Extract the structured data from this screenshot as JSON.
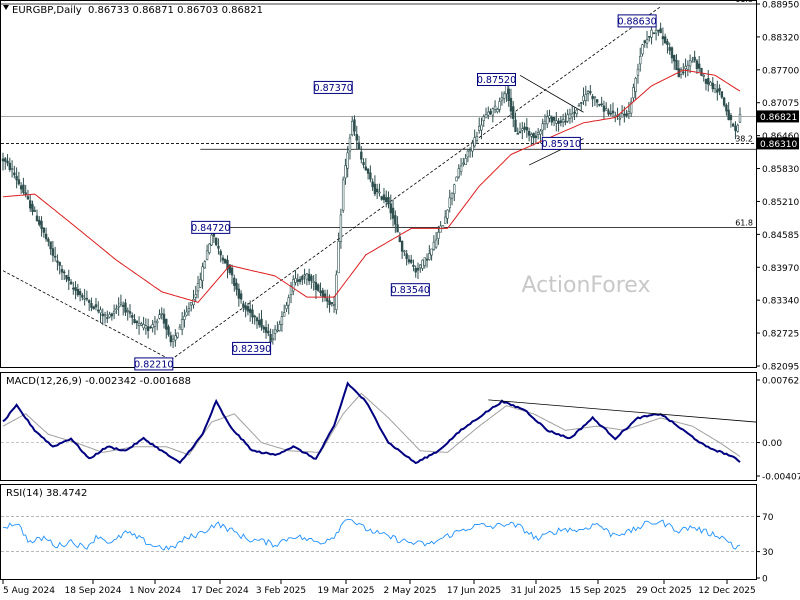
{
  "header": {
    "symbol_line": "EURGBP,Daily",
    "ohlc": "0.86733 0.86871 0.86703 0.86821"
  },
  "watermark": "ActionForex",
  "colors": {
    "candle": "#2f4f4f",
    "ma": "#dc1e1e",
    "macd_main": "#000080",
    "macd_signal": "#a0a0a0",
    "rsi": "#1e90ff",
    "trendline": "#000000",
    "price_label_bg": "#000000",
    "price_label_text": "#ffffff"
  },
  "chart_data": [
    {
      "type": "candlestick",
      "panel": "price",
      "ylim": [
        0.82095,
        0.8895
      ],
      "y_ticks": [
        "0.88950",
        "0.88320",
        "0.87700",
        "0.87075",
        "0.86460",
        "0.85830",
        "0.85210",
        "0.84585",
        "0.83970",
        "0.83340",
        "0.82725",
        "0.82095"
      ],
      "x_ticks": [
        "5 Aug 2024",
        "18 Sep 2024",
        "1 Nov 2024",
        "17 Dec 2024",
        "3 Feb 2025",
        "19 Mar 2025",
        "2 May 2025",
        "17 Jun 2025",
        "31 Jul 2025",
        "15 Sep 2025",
        "29 Oct 2025",
        "12 Dec 2025"
      ],
      "anchors": [
        {
          "x": 0,
          "v": 0.86
        },
        {
          "x": 4,
          "v": 0.858
        },
        {
          "x": 10,
          "v": 0.853
        },
        {
          "x": 16,
          "v": 0.848
        },
        {
          "x": 22,
          "v": 0.842
        },
        {
          "x": 30,
          "v": 0.836
        },
        {
          "x": 38,
          "v": 0.833
        },
        {
          "x": 46,
          "v": 0.83
        },
        {
          "x": 52,
          "v": 0.833
        },
        {
          "x": 58,
          "v": 0.829
        },
        {
          "x": 64,
          "v": 0.828
        },
        {
          "x": 70,
          "v": 0.831
        },
        {
          "x": 74,
          "v": 0.825
        },
        {
          "x": 80,
          "v": 0.83
        },
        {
          "x": 86,
          "v": 0.836
        },
        {
          "x": 92,
          "v": 0.846
        },
        {
          "x": 96,
          "v": 0.842
        },
        {
          "x": 100,
          "v": 0.839
        },
        {
          "x": 106,
          "v": 0.832
        },
        {
          "x": 112,
          "v": 0.83
        },
        {
          "x": 118,
          "v": 0.826
        },
        {
          "x": 122,
          "v": 0.829
        },
        {
          "x": 128,
          "v": 0.837
        },
        {
          "x": 134,
          "v": 0.838
        },
        {
          "x": 140,
          "v": 0.835
        },
        {
          "x": 146,
          "v": 0.832
        },
        {
          "x": 150,
          "v": 0.856
        },
        {
          "x": 154,
          "v": 0.867
        },
        {
          "x": 158,
          "v": 0.86
        },
        {
          "x": 164,
          "v": 0.854
        },
        {
          "x": 170,
          "v": 0.852
        },
        {
          "x": 176,
          "v": 0.843
        },
        {
          "x": 182,
          "v": 0.839
        },
        {
          "x": 188,
          "v": 0.842
        },
        {
          "x": 194,
          "v": 0.848
        },
        {
          "x": 200,
          "v": 0.857
        },
        {
          "x": 206,
          "v": 0.862
        },
        {
          "x": 212,
          "v": 0.868
        },
        {
          "x": 218,
          "v": 0.87
        },
        {
          "x": 222,
          "v": 0.874
        },
        {
          "x": 226,
          "v": 0.865
        },
        {
          "x": 230,
          "v": 0.866
        },
        {
          "x": 234,
          "v": 0.864
        },
        {
          "x": 240,
          "v": 0.868
        },
        {
          "x": 246,
          "v": 0.867
        },
        {
          "x": 252,
          "v": 0.869
        },
        {
          "x": 258,
          "v": 0.873
        },
        {
          "x": 264,
          "v": 0.87
        },
        {
          "x": 270,
          "v": 0.868
        },
        {
          "x": 276,
          "v": 0.869
        },
        {
          "x": 282,
          "v": 0.882
        },
        {
          "x": 288,
          "v": 0.885
        },
        {
          "x": 294,
          "v": 0.881
        },
        {
          "x": 298,
          "v": 0.876
        },
        {
          "x": 304,
          "v": 0.879
        },
        {
          "x": 310,
          "v": 0.875
        },
        {
          "x": 316,
          "v": 0.873
        },
        {
          "x": 320,
          "v": 0.868
        },
        {
          "x": 323,
          "v": 0.865
        },
        {
          "x": 325,
          "v": 0.8682
        }
      ],
      "moving_average_anchors": [
        {
          "x": 0,
          "v": 0.853
        },
        {
          "x": 14,
          "v": 0.8535
        },
        {
          "x": 30,
          "v": 0.848
        },
        {
          "x": 50,
          "v": 0.841
        },
        {
          "x": 70,
          "v": 0.835
        },
        {
          "x": 86,
          "v": 0.833
        },
        {
          "x": 100,
          "v": 0.84
        },
        {
          "x": 120,
          "v": 0.838
        },
        {
          "x": 134,
          "v": 0.834
        },
        {
          "x": 146,
          "v": 0.834
        },
        {
          "x": 160,
          "v": 0.842
        },
        {
          "x": 180,
          "v": 0.847
        },
        {
          "x": 196,
          "v": 0.847
        },
        {
          "x": 210,
          "v": 0.855
        },
        {
          "x": 224,
          "v": 0.861
        },
        {
          "x": 240,
          "v": 0.864
        },
        {
          "x": 256,
          "v": 0.867
        },
        {
          "x": 270,
          "v": 0.868
        },
        {
          "x": 286,
          "v": 0.874
        },
        {
          "x": 300,
          "v": 0.877
        },
        {
          "x": 314,
          "v": 0.876
        },
        {
          "x": 325,
          "v": 0.873
        }
      ],
      "horizontal_levels": [
        {
          "value": 0.8895,
          "label": "61.8",
          "style": "solid"
        },
        {
          "value": 0.86821,
          "label": "",
          "style": "solid-gray"
        },
        {
          "value": 0.8631,
          "label": "38.2",
          "style": "dashed"
        },
        {
          "value": 0.862,
          "label": "",
          "style": "solid",
          "from_x": 87
        },
        {
          "value": 0.8472,
          "label": "61.8",
          "style": "solid",
          "from_x": 100
        }
      ],
      "annotations": [
        {
          "text": "0.82210",
          "x": 74,
          "v": 0.8221
        },
        {
          "text": "0.84720",
          "x": 100,
          "v": 0.8472
        },
        {
          "text": "0.82390",
          "x": 118,
          "v": 0.8239
        },
        {
          "text": "0.87370",
          "x": 154,
          "v": 0.8737
        },
        {
          "text": "0.83540",
          "x": 188,
          "v": 0.8354
        },
        {
          "text": "0.87520",
          "x": 226,
          "v": 0.8752
        },
        {
          "text": "0.85910",
          "x": 244,
          "v": 0.8631
        },
        {
          "text": "0.88630",
          "x": 288,
          "v": 0.8863
        }
      ],
      "trendlines": [
        {
          "x1": 0,
          "v1": 0.839,
          "x2": 74,
          "v2": 0.8221,
          "style": "dashed"
        },
        {
          "x1": 74,
          "v1": 0.8221,
          "x2": 290,
          "v2": 0.889,
          "style": "dashed"
        },
        {
          "x1": 228,
          "v1": 0.876,
          "x2": 256,
          "v2": 0.869,
          "style": "solid"
        },
        {
          "x1": 232,
          "v1": 0.859,
          "x2": 256,
          "v2": 0.864,
          "style": "solid"
        }
      ],
      "price_labels": [
        {
          "text": "0.86821",
          "v": 0.86821
        },
        {
          "text": "0.86310",
          "v": 0.8631
        }
      ]
    },
    {
      "type": "line",
      "panel": "macd",
      "title": "MACD(12,26,9) -0.002342 -0.001688",
      "ylim": [
        -0.004073,
        0.007623
      ],
      "y_ticks": [
        "0.007623",
        "0.00",
        "-0.004073"
      ],
      "main_anchors": [
        {
          "x": 0,
          "v": 0.0025
        },
        {
          "x": 6,
          "v": 0.0045
        },
        {
          "x": 14,
          "v": 0.0015
        },
        {
          "x": 22,
          "v": -0.0005
        },
        {
          "x": 30,
          "v": 0.0005
        },
        {
          "x": 38,
          "v": -0.002
        },
        {
          "x": 46,
          "v": -0.0005
        },
        {
          "x": 54,
          "v": -0.001
        },
        {
          "x": 62,
          "v": 0.0005
        },
        {
          "x": 70,
          "v": -0.001
        },
        {
          "x": 78,
          "v": -0.0025
        },
        {
          "x": 88,
          "v": 0.001
        },
        {
          "x": 94,
          "v": 0.005
        },
        {
          "x": 100,
          "v": 0.002
        },
        {
          "x": 110,
          "v": -0.001
        },
        {
          "x": 120,
          "v": -0.0015
        },
        {
          "x": 128,
          "v": -0.0005
        },
        {
          "x": 138,
          "v": -0.002
        },
        {
          "x": 146,
          "v": 0.002
        },
        {
          "x": 152,
          "v": 0.0072
        },
        {
          "x": 160,
          "v": 0.005
        },
        {
          "x": 170,
          "v": 0.0
        },
        {
          "x": 182,
          "v": -0.0025
        },
        {
          "x": 192,
          "v": -0.001
        },
        {
          "x": 202,
          "v": 0.0015
        },
        {
          "x": 212,
          "v": 0.0035
        },
        {
          "x": 220,
          "v": 0.005
        },
        {
          "x": 230,
          "v": 0.004
        },
        {
          "x": 240,
          "v": 0.0015
        },
        {
          "x": 250,
          "v": 0.0005
        },
        {
          "x": 260,
          "v": 0.003
        },
        {
          "x": 270,
          "v": 0.0005
        },
        {
          "x": 280,
          "v": 0.003
        },
        {
          "x": 290,
          "v": 0.0035
        },
        {
          "x": 300,
          "v": 0.0015
        },
        {
          "x": 310,
          "v": -0.0005
        },
        {
          "x": 320,
          "v": -0.0015
        },
        {
          "x": 325,
          "v": -0.0023
        }
      ],
      "signal_anchors": [
        {
          "x": 0,
          "v": 0.002
        },
        {
          "x": 10,
          "v": 0.0035
        },
        {
          "x": 20,
          "v": 0.001
        },
        {
          "x": 32,
          "v": 0.0
        },
        {
          "x": 44,
          "v": -0.0012
        },
        {
          "x": 58,
          "v": -0.0005
        },
        {
          "x": 72,
          "v": -0.0005
        },
        {
          "x": 82,
          "v": -0.0015
        },
        {
          "x": 92,
          "v": 0.0025
        },
        {
          "x": 102,
          "v": 0.0035
        },
        {
          "x": 114,
          "v": 0.0
        },
        {
          "x": 126,
          "v": -0.001
        },
        {
          "x": 140,
          "v": -0.0012
        },
        {
          "x": 150,
          "v": 0.0035
        },
        {
          "x": 158,
          "v": 0.006
        },
        {
          "x": 170,
          "v": 0.003
        },
        {
          "x": 184,
          "v": -0.001
        },
        {
          "x": 196,
          "v": -0.0012
        },
        {
          "x": 210,
          "v": 0.002
        },
        {
          "x": 222,
          "v": 0.0045
        },
        {
          "x": 234,
          "v": 0.0035
        },
        {
          "x": 248,
          "v": 0.0015
        },
        {
          "x": 262,
          "v": 0.002
        },
        {
          "x": 274,
          "v": 0.0015
        },
        {
          "x": 290,
          "v": 0.003
        },
        {
          "x": 304,
          "v": 0.002
        },
        {
          "x": 316,
          "v": 0.0
        },
        {
          "x": 325,
          "v": -0.0017
        }
      ],
      "trendline": {
        "x1": 214,
        "v1": 0.0052,
        "x2": 325,
        "v2": 0.0025
      }
    },
    {
      "type": "line",
      "panel": "rsi",
      "title": "RSI(14) 38.4742",
      "ylim": [
        0,
        100
      ],
      "y_ticks": [
        "70",
        "30",
        "0"
      ],
      "levels": [
        70,
        30
      ],
      "anchors": [
        {
          "x": 0,
          "v": 58
        },
        {
          "x": 6,
          "v": 63
        },
        {
          "x": 12,
          "v": 40
        },
        {
          "x": 18,
          "v": 46
        },
        {
          "x": 24,
          "v": 36
        },
        {
          "x": 30,
          "v": 42
        },
        {
          "x": 36,
          "v": 34
        },
        {
          "x": 42,
          "v": 48
        },
        {
          "x": 48,
          "v": 39
        },
        {
          "x": 54,
          "v": 52
        },
        {
          "x": 60,
          "v": 45
        },
        {
          "x": 66,
          "v": 37
        },
        {
          "x": 74,
          "v": 33
        },
        {
          "x": 80,
          "v": 44
        },
        {
          "x": 88,
          "v": 52
        },
        {
          "x": 94,
          "v": 62
        },
        {
          "x": 100,
          "v": 55
        },
        {
          "x": 108,
          "v": 44
        },
        {
          "x": 114,
          "v": 42
        },
        {
          "x": 120,
          "v": 38
        },
        {
          "x": 128,
          "v": 48
        },
        {
          "x": 134,
          "v": 44
        },
        {
          "x": 140,
          "v": 40
        },
        {
          "x": 146,
          "v": 48
        },
        {
          "x": 152,
          "v": 70
        },
        {
          "x": 158,
          "v": 58
        },
        {
          "x": 166,
          "v": 50
        },
        {
          "x": 174,
          "v": 44
        },
        {
          "x": 180,
          "v": 40
        },
        {
          "x": 188,
          "v": 38
        },
        {
          "x": 196,
          "v": 48
        },
        {
          "x": 204,
          "v": 56
        },
        {
          "x": 210,
          "v": 60
        },
        {
          "x": 216,
          "v": 58
        },
        {
          "x": 222,
          "v": 62
        },
        {
          "x": 228,
          "v": 58
        },
        {
          "x": 236,
          "v": 44
        },
        {
          "x": 242,
          "v": 52
        },
        {
          "x": 248,
          "v": 56
        },
        {
          "x": 254,
          "v": 54
        },
        {
          "x": 262,
          "v": 62
        },
        {
          "x": 268,
          "v": 50
        },
        {
          "x": 276,
          "v": 52
        },
        {
          "x": 284,
          "v": 62
        },
        {
          "x": 290,
          "v": 64
        },
        {
          "x": 298,
          "v": 54
        },
        {
          "x": 304,
          "v": 58
        },
        {
          "x": 310,
          "v": 52
        },
        {
          "x": 316,
          "v": 48
        },
        {
          "x": 321,
          "v": 40
        },
        {
          "x": 323,
          "v": 33
        },
        {
          "x": 325,
          "v": 38
        }
      ]
    }
  ]
}
